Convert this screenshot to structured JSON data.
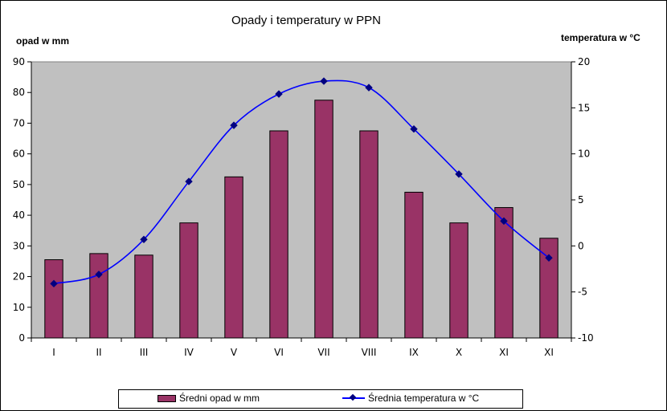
{
  "chart_data": {
    "type": "bar",
    "title": "Opady i temperatury w PPN",
    "ylabel": "opad w mm",
    "y2label": "temperatura w °C",
    "categories": [
      "I",
      "II",
      "III",
      "IV",
      "V",
      "VI",
      "VII",
      "VIII",
      "IX",
      "X",
      "XI",
      "XI"
    ],
    "ylim": [
      0,
      90
    ],
    "y_ticks": [
      0,
      10,
      20,
      30,
      40,
      50,
      60,
      70,
      80,
      90
    ],
    "y2lim": [
      -10,
      20
    ],
    "y2_ticks": [
      -10,
      -5,
      0,
      5,
      10,
      15,
      20
    ],
    "background": "#c0c0c0",
    "grid": false,
    "legend_position": "bottom",
    "series": [
      {
        "name": "Średni opad w mm",
        "type": "bar",
        "axis": "left",
        "color": "#993366",
        "values": [
          25.5,
          27.5,
          27,
          37.5,
          52.5,
          67.5,
          77.5,
          67.5,
          47.5,
          37.5,
          42.5,
          32.5
        ]
      },
      {
        "name": "Średnia temperatura w °C",
        "type": "line",
        "axis": "right",
        "smooth": true,
        "marker": "diamond",
        "color": "#0000ff",
        "marker_color": "#000080",
        "values": [
          -4.1,
          -3.1,
          0.7,
          7.0,
          13.1,
          16.5,
          17.9,
          17.2,
          12.7,
          7.8,
          2.7,
          -1.3
        ]
      }
    ]
  }
}
